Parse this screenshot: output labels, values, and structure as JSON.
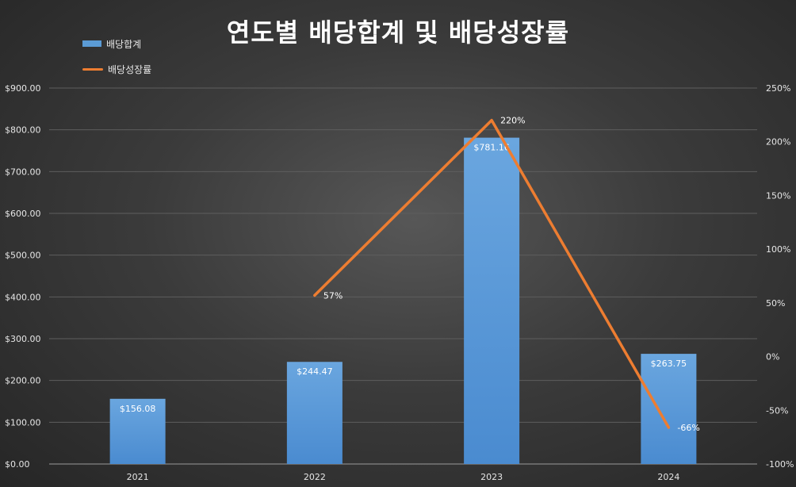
{
  "chart_data": {
    "type": "bar",
    "title": "연도별 배당합계 및 배당성장률",
    "categories": [
      "2021",
      "2022",
      "2023",
      "2024"
    ],
    "series": [
      {
        "name": "배당합계",
        "type": "bar",
        "axis": "left",
        "values": [
          156.08,
          244.47,
          781.16,
          263.75
        ],
        "labels": [
          "$156.08",
          "$244.47",
          "$781.16",
          "$263.75"
        ],
        "color": "#5b9bd5"
      },
      {
        "name": "배당성장률",
        "type": "line",
        "axis": "right",
        "values": [
          null,
          57,
          220,
          -66
        ],
        "labels": [
          "",
          "57%",
          "220%",
          "-66%"
        ],
        "color": "#ed7d31"
      }
    ],
    "y_left": {
      "ylim": [
        0,
        900
      ],
      "ticks": [
        0,
        100,
        200,
        300,
        400,
        500,
        600,
        700,
        800,
        900
      ],
      "tick_labels": [
        "$0.00",
        "$100.00",
        "$200.00",
        "$300.00",
        "$400.00",
        "$500.00",
        "$600.00",
        "$700.00",
        "$800.00",
        "$900.00"
      ]
    },
    "y_right": {
      "ylim": [
        -100,
        250
      ],
      "ticks": [
        -100,
        -50,
        0,
        50,
        100,
        150,
        200,
        250
      ],
      "tick_labels": [
        "-100%",
        "-50%",
        "0%",
        "50%",
        "100%",
        "150%",
        "200%",
        "250%"
      ]
    },
    "grid": true,
    "legend_position": "top-left"
  }
}
